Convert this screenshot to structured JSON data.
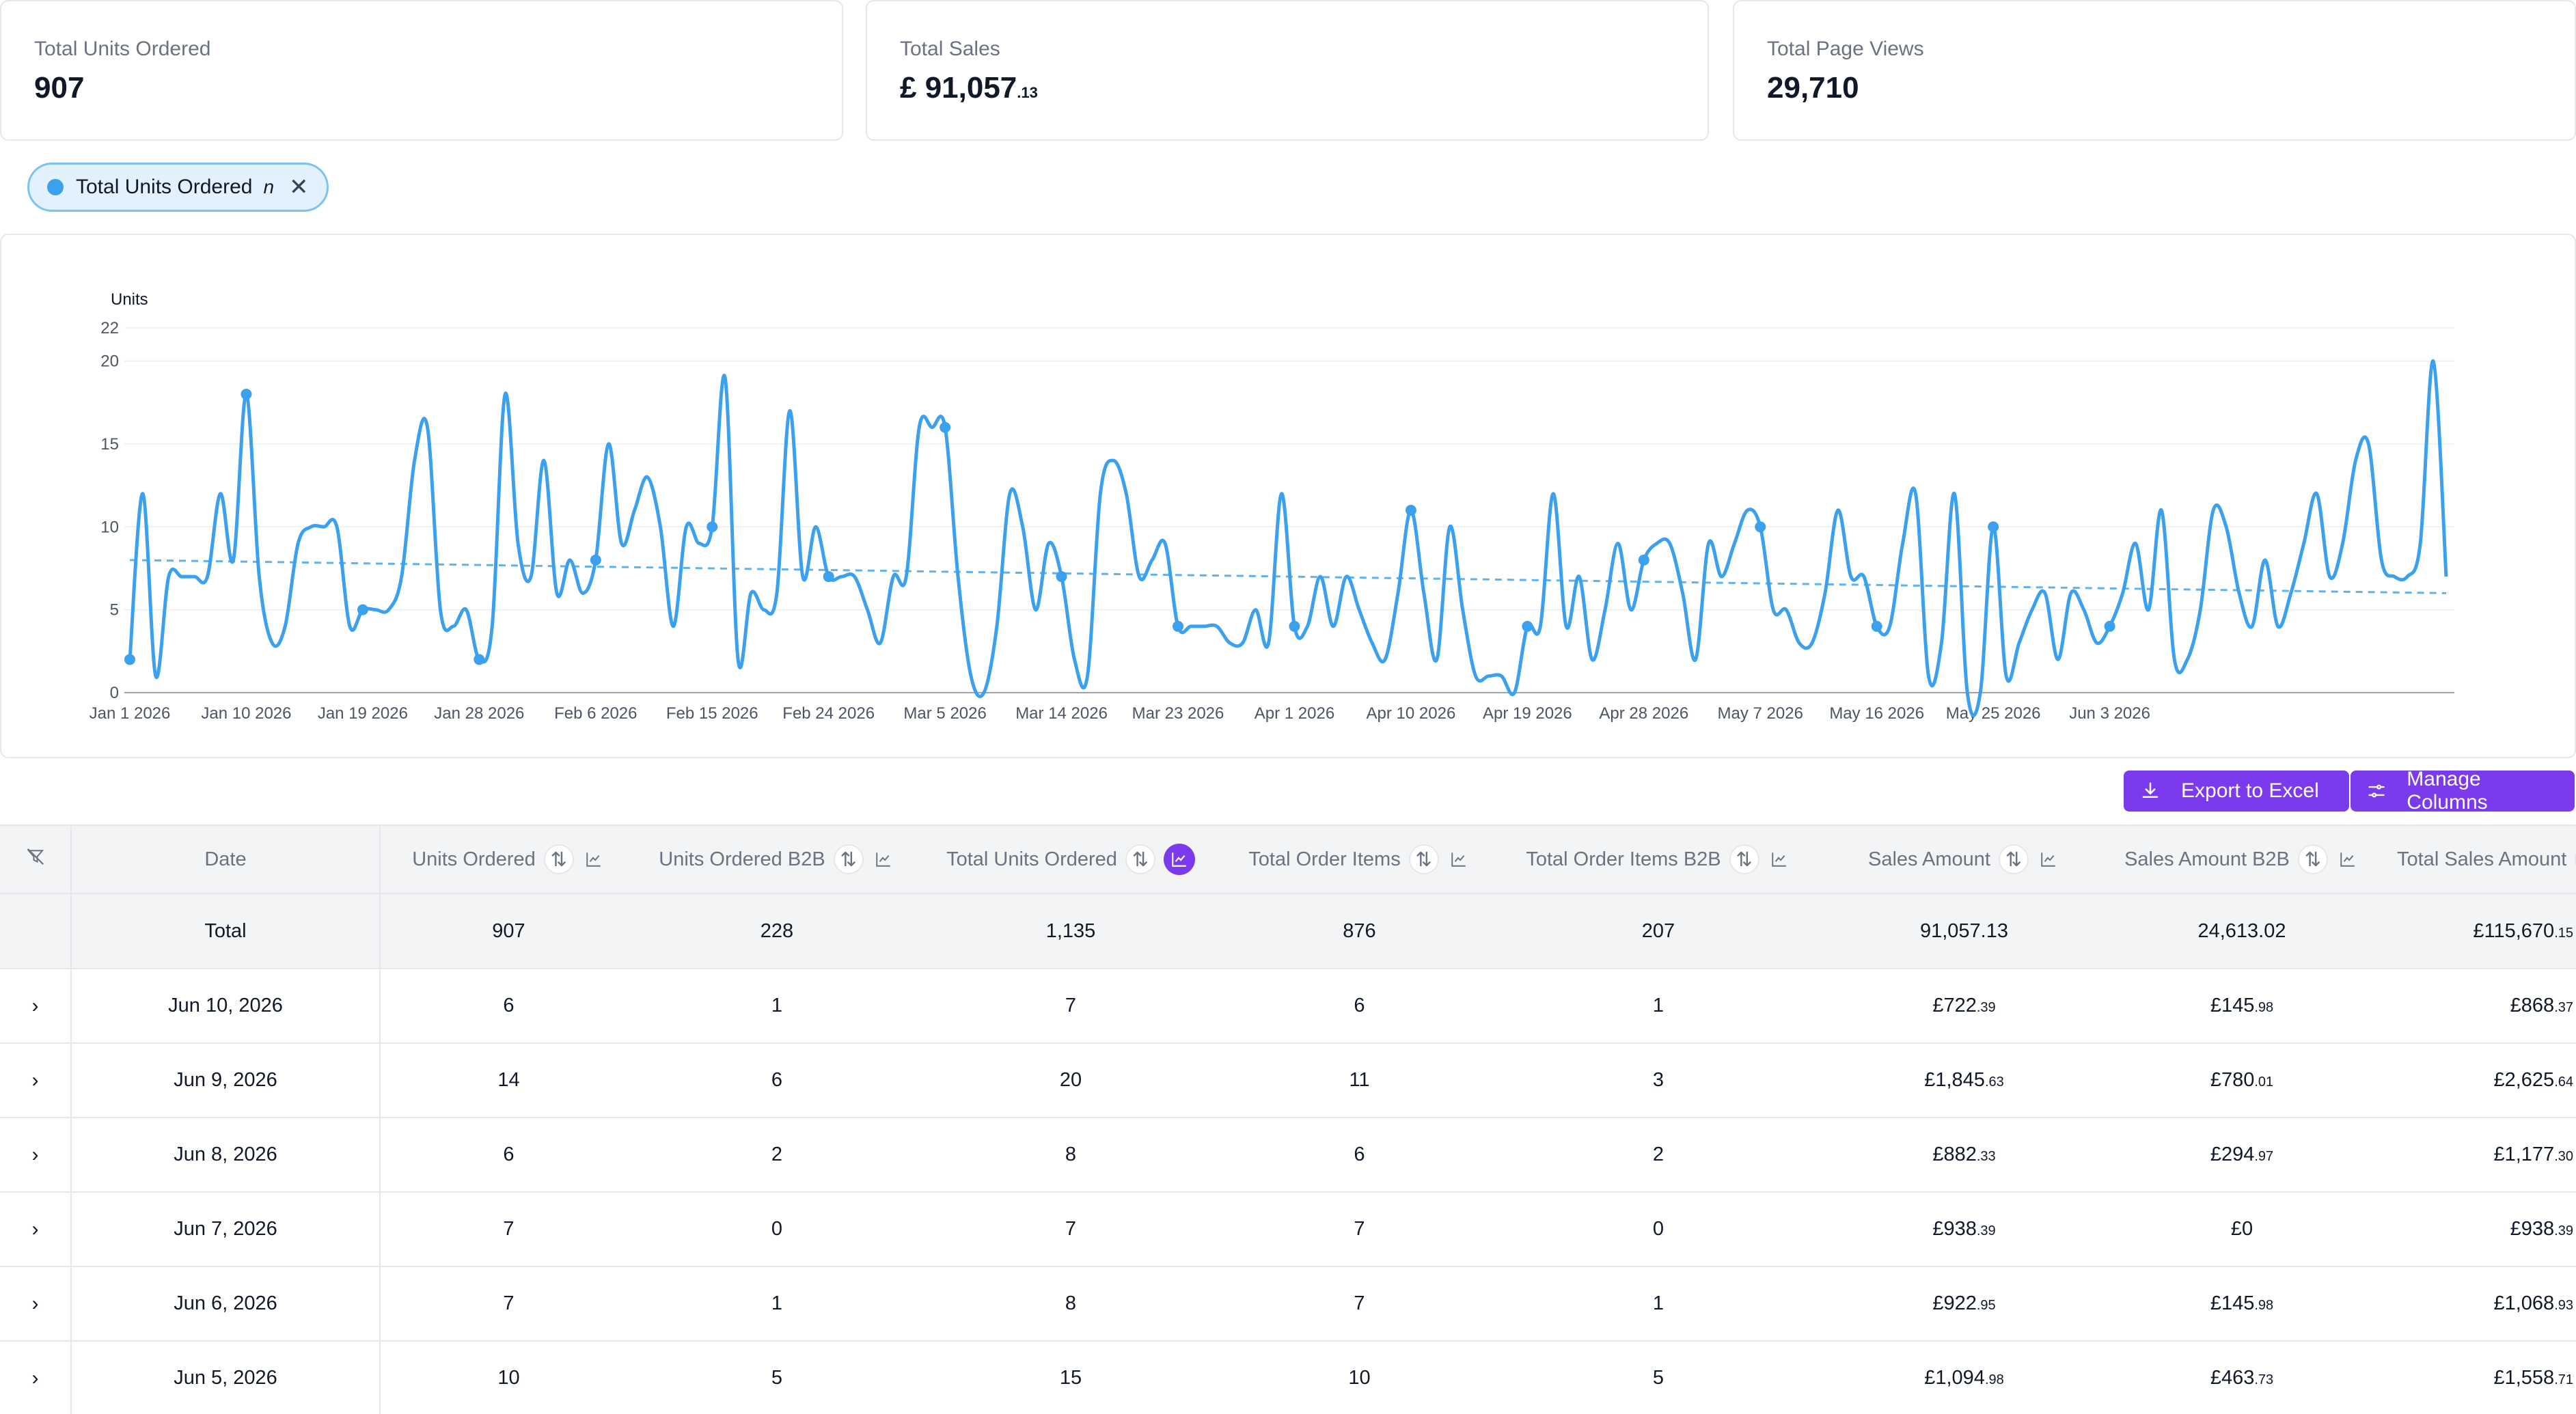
{
  "kpis": [
    {
      "label": "Total Units Ordered",
      "value": "907",
      "cents": ""
    },
    {
      "label": "Total Sales",
      "value": "£ 91,057",
      "cents": ".13"
    },
    {
      "label": "Total Page Views",
      "value": "29,710",
      "cents": ""
    }
  ],
  "chip": {
    "label": "Total Units Ordered",
    "suffix": "n",
    "close": "✕"
  },
  "buttons": {
    "export_label": "Export to Excel",
    "manage_label": "Manage Columns"
  },
  "colors": {
    "accent": "#7c3aed",
    "series": "#3ba0ee",
    "chip_bg": "#e3f1fc"
  },
  "chart_data": {
    "type": "line",
    "ylabel": "Units",
    "ylim": [
      0,
      22
    ],
    "yticks": [
      "0",
      "5",
      "10",
      "15",
      "20",
      "22"
    ],
    "ytick_values": [
      0,
      5,
      10,
      15,
      20,
      22
    ],
    "x_tick_labels": [
      "Jan 1 2026",
      "Jan 10 2026",
      "Jan 19 2026",
      "Jan 28 2026",
      "Feb 6 2026",
      "Feb 15 2026",
      "Feb 24 2026",
      "Mar 5 2026",
      "Mar 14 2026",
      "Mar 23 2026",
      "Apr 1 2026",
      "Apr 10 2026",
      "Apr 19 2026",
      "Apr 28 2026",
      "May 7 2026",
      "May 16 2026",
      "May 25 2026",
      "Jun 3 2026"
    ],
    "x_start": "2026-01-01",
    "x_end": "2026-06-10",
    "grid": true,
    "trendline": {
      "start": 8,
      "end": 6
    },
    "series": [
      {
        "values": [
          2,
          12,
          1,
          7,
          7,
          7,
          7,
          12,
          8,
          18,
          7,
          3,
          4,
          9,
          10,
          10,
          10,
          4,
          5,
          5,
          5,
          7,
          14,
          16,
          5,
          4,
          5,
          2,
          4,
          18,
          9,
          7,
          14,
          6,
          8,
          6,
          8,
          15,
          9,
          11,
          13,
          10,
          4,
          10,
          9,
          10,
          19,
          2,
          6,
          5,
          6,
          17,
          7,
          10,
          7,
          7,
          7,
          5,
          3,
          7,
          7,
          16,
          16,
          16,
          7,
          1,
          0,
          4,
          12,
          10,
          5,
          9,
          7,
          2,
          1,
          12,
          14,
          12,
          7,
          8,
          9,
          4,
          4,
          4,
          4,
          3,
          3,
          5,
          3,
          12,
          4,
          4,
          7,
          4,
          7,
          5,
          3,
          2,
          6,
          11,
          6,
          2,
          10,
          5,
          1,
          1,
          1,
          0,
          4,
          4,
          12,
          4,
          7,
          2,
          5,
          9,
          5,
          8,
          9,
          9,
          6,
          2,
          9,
          7,
          9,
          11,
          10,
          5,
          5,
          3,
          3,
          6,
          11,
          7,
          7,
          4,
          4,
          9,
          12,
          1,
          3,
          12,
          0,
          0,
          10,
          1,
          3,
          5,
          6,
          2,
          6,
          5,
          3,
          4,
          6,
          9,
          5,
          11,
          2,
          2,
          5,
          11,
          10,
          6,
          4,
          8,
          4,
          6,
          9,
          12,
          7,
          9,
          14,
          15,
          8,
          7,
          7,
          9,
          20,
          7
        ]
      }
    ]
  },
  "table": {
    "headers": [
      "Date",
      "Units Ordered",
      "Units Ordered B2B",
      "Total Units Ordered",
      "Total Order Items",
      "Total Order Items B2B",
      "Sales Amount",
      "Sales Amount B2B",
      "Total Sales Amount"
    ],
    "total": {
      "label": "Total",
      "cells": [
        "907",
        "228",
        "1,135",
        "876",
        "207",
        "91,057.13",
        "24,613.02",
        "£115,670",
        ".15"
      ]
    },
    "rows": [
      {
        "date": "Jun 10, 2026",
        "uo": "6",
        "uob": "1",
        "tuo": "7",
        "toi": "6",
        "toib": "1",
        "sa": "£722",
        "sa_p": ".39",
        "sab": "£145",
        "sab_p": ".98",
        "tsa": "£868",
        "tsa_p": ".37"
      },
      {
        "date": "Jun 9, 2026",
        "uo": "14",
        "uob": "6",
        "tuo": "20",
        "toi": "11",
        "toib": "3",
        "sa": "£1,845",
        "sa_p": ".63",
        "sab": "£780",
        "sab_p": ".01",
        "tsa": "£2,625",
        "tsa_p": ".64"
      },
      {
        "date": "Jun 8, 2026",
        "uo": "6",
        "uob": "2",
        "tuo": "8",
        "toi": "6",
        "toib": "2",
        "sa": "£882",
        "sa_p": ".33",
        "sab": "£294",
        "sab_p": ".97",
        "tsa": "£1,177",
        "tsa_p": ".30"
      },
      {
        "date": "Jun 7, 2026",
        "uo": "7",
        "uob": "0",
        "tuo": "7",
        "toi": "7",
        "toib": "0",
        "sa": "£938",
        "sa_p": ".39",
        "sab": "£0",
        "sab_p": "",
        "tsa": "£938",
        "tsa_p": ".39"
      },
      {
        "date": "Jun 6, 2026",
        "uo": "7",
        "uob": "1",
        "tuo": "8",
        "toi": "7",
        "toib": "1",
        "sa": "£922",
        "sa_p": ".95",
        "sab": "£145",
        "sab_p": ".98",
        "tsa": "£1,068",
        "tsa_p": ".93"
      },
      {
        "date": "Jun 5, 2026",
        "uo": "10",
        "uob": "5",
        "tuo": "15",
        "toi": "10",
        "toib": "5",
        "sa": "£1,094",
        "sa_p": ".98",
        "sab": "£463",
        "sab_p": ".73",
        "tsa": "£1,558",
        "tsa_p": ".71"
      }
    ]
  }
}
